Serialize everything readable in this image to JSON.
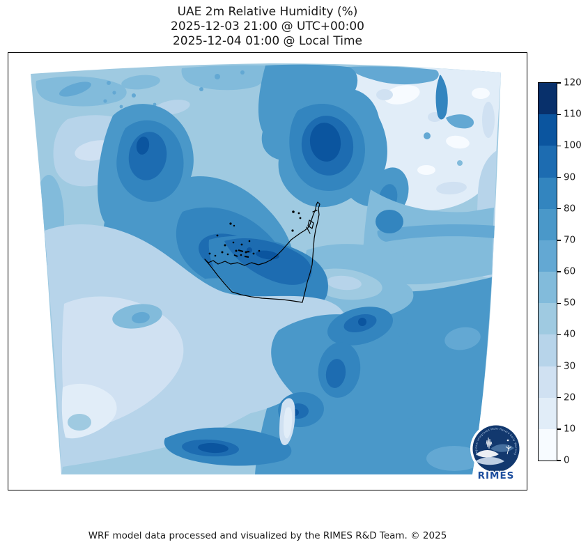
{
  "title": {
    "line1": "UAE 2m Relative Humidity (%)",
    "line2": "2025-12-03 21:00 @ UTC+00:00",
    "line3": "2025-12-04 01:00 @ Local Time"
  },
  "footer": {
    "text": "WRF model data processed and visualized by the RIMES R&D Team. © 2025"
  },
  "colorbar": {
    "min": 0,
    "max": 120,
    "ticks": [
      0,
      10,
      20,
      30,
      40,
      50,
      60,
      70,
      80,
      90,
      100,
      110,
      120
    ],
    "band_colors": [
      "#f7fbff",
      "#e1edf8",
      "#d0e1f2",
      "#b7d4ea",
      "#9fcae1",
      "#82bbdb",
      "#63a8d3",
      "#4a98c9",
      "#3385bf",
      "#1d6cb1",
      "#0b559f",
      "#08306b"
    ]
  },
  "map": {
    "variable": "2m Relative Humidity (%)",
    "region": "UAE",
    "border_color": "#000000",
    "frame_color": "#000000",
    "logo": {
      "text": "RIMES",
      "ring_text": "Regional Integrated Multi-Hazard Early Warning System",
      "disc_color": "#12386e",
      "text_color": "#1d4e9e",
      "ring_text_color": "#bcd4ee"
    }
  }
}
